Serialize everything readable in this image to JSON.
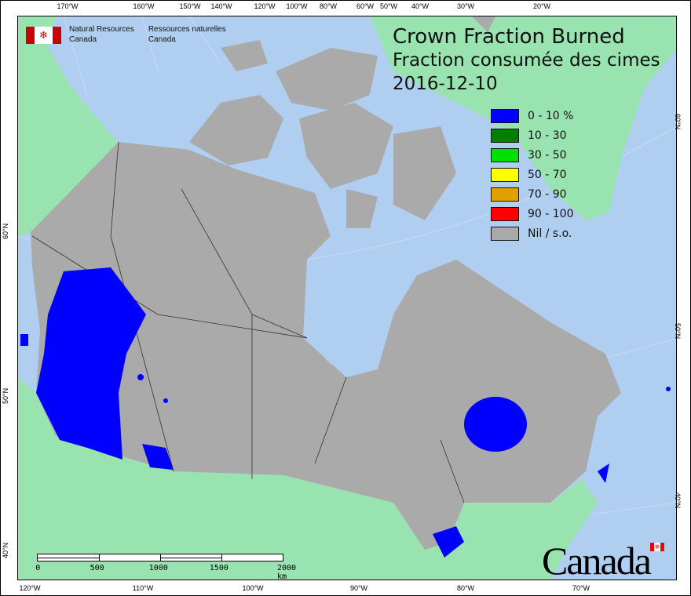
{
  "header": {
    "org_en": [
      "Natural Resources",
      "Canada"
    ],
    "org_fr": [
      "Ressources naturelles",
      "Canada"
    ],
    "title_en": "Crown Fraction Burned",
    "title_fr": "Fraction consumée des cimes",
    "date": "2016-12-10"
  },
  "legend": [
    {
      "label": "0 - 10 %",
      "color": "#0000ff"
    },
    {
      "label": "10 - 30",
      "color": "#007f00"
    },
    {
      "label": "30 - 50",
      "color": "#00e000"
    },
    {
      "label": "50 - 70",
      "color": "#ffff00"
    },
    {
      "label": "70 - 90",
      "color": "#e0a000"
    },
    {
      "label": "90 - 100",
      "color": "#ff0000"
    },
    {
      "label": "Nil / s.o.",
      "color": "#aaaaaa"
    }
  ],
  "axes": {
    "top": [
      "170°W",
      "160°W",
      "150°W",
      "140°W",
      "120°W",
      "100°W",
      "80°W",
      "60°W",
      "50°W",
      "40°W",
      "30°W",
      "20°W"
    ],
    "bottom": [
      "120°W",
      "110°W",
      "100°W",
      "90°W",
      "80°W",
      "70°W"
    ],
    "left": [
      "60°N",
      "50°N",
      "40°N"
    ],
    "right": [
      "60°N",
      "50°N",
      "40°N"
    ]
  },
  "scale_bar": {
    "labels": [
      "0",
      "500",
      "1000",
      "1500",
      "2000 km"
    ]
  },
  "wordmark": "Canada",
  "colors": {
    "ocean": "#b0cff0",
    "land_foreign": "#98e3b0",
    "canada": "#aaaaaa",
    "burn_low": "#0000ff"
  }
}
